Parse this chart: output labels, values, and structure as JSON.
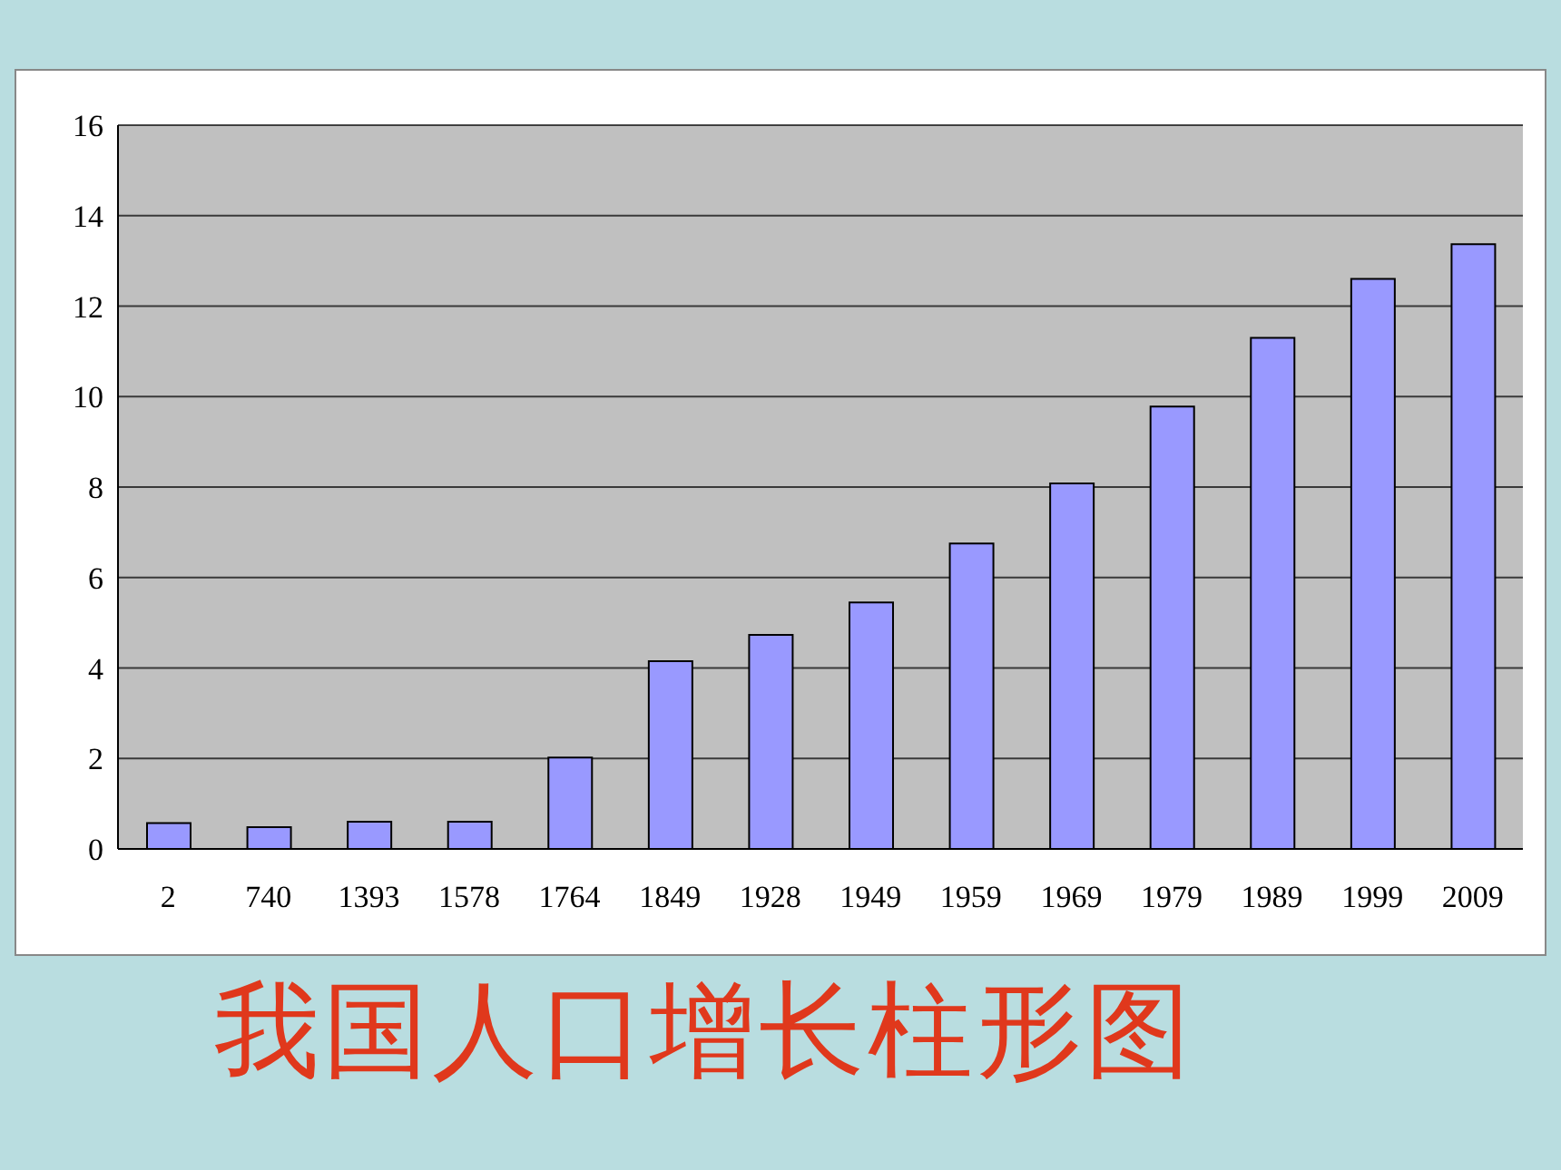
{
  "chart_data": {
    "type": "bar",
    "title": "我国人口增长柱形图",
    "categories": [
      "2",
      "740",
      "1393",
      "1578",
      "1764",
      "1849",
      "1928",
      "1949",
      "1959",
      "1969",
      "1979",
      "1989",
      "1999",
      "2009"
    ],
    "values": [
      0.57,
      0.48,
      0.6,
      0.6,
      2.02,
      4.15,
      4.73,
      5.45,
      6.75,
      8.08,
      9.78,
      11.3,
      12.6,
      13.37
    ],
    "color": "#9999ff",
    "ylim": [
      0,
      16
    ],
    "yticks": [
      0,
      2,
      4,
      6,
      8,
      10,
      12,
      14,
      16
    ],
    "grid": "y"
  }
}
